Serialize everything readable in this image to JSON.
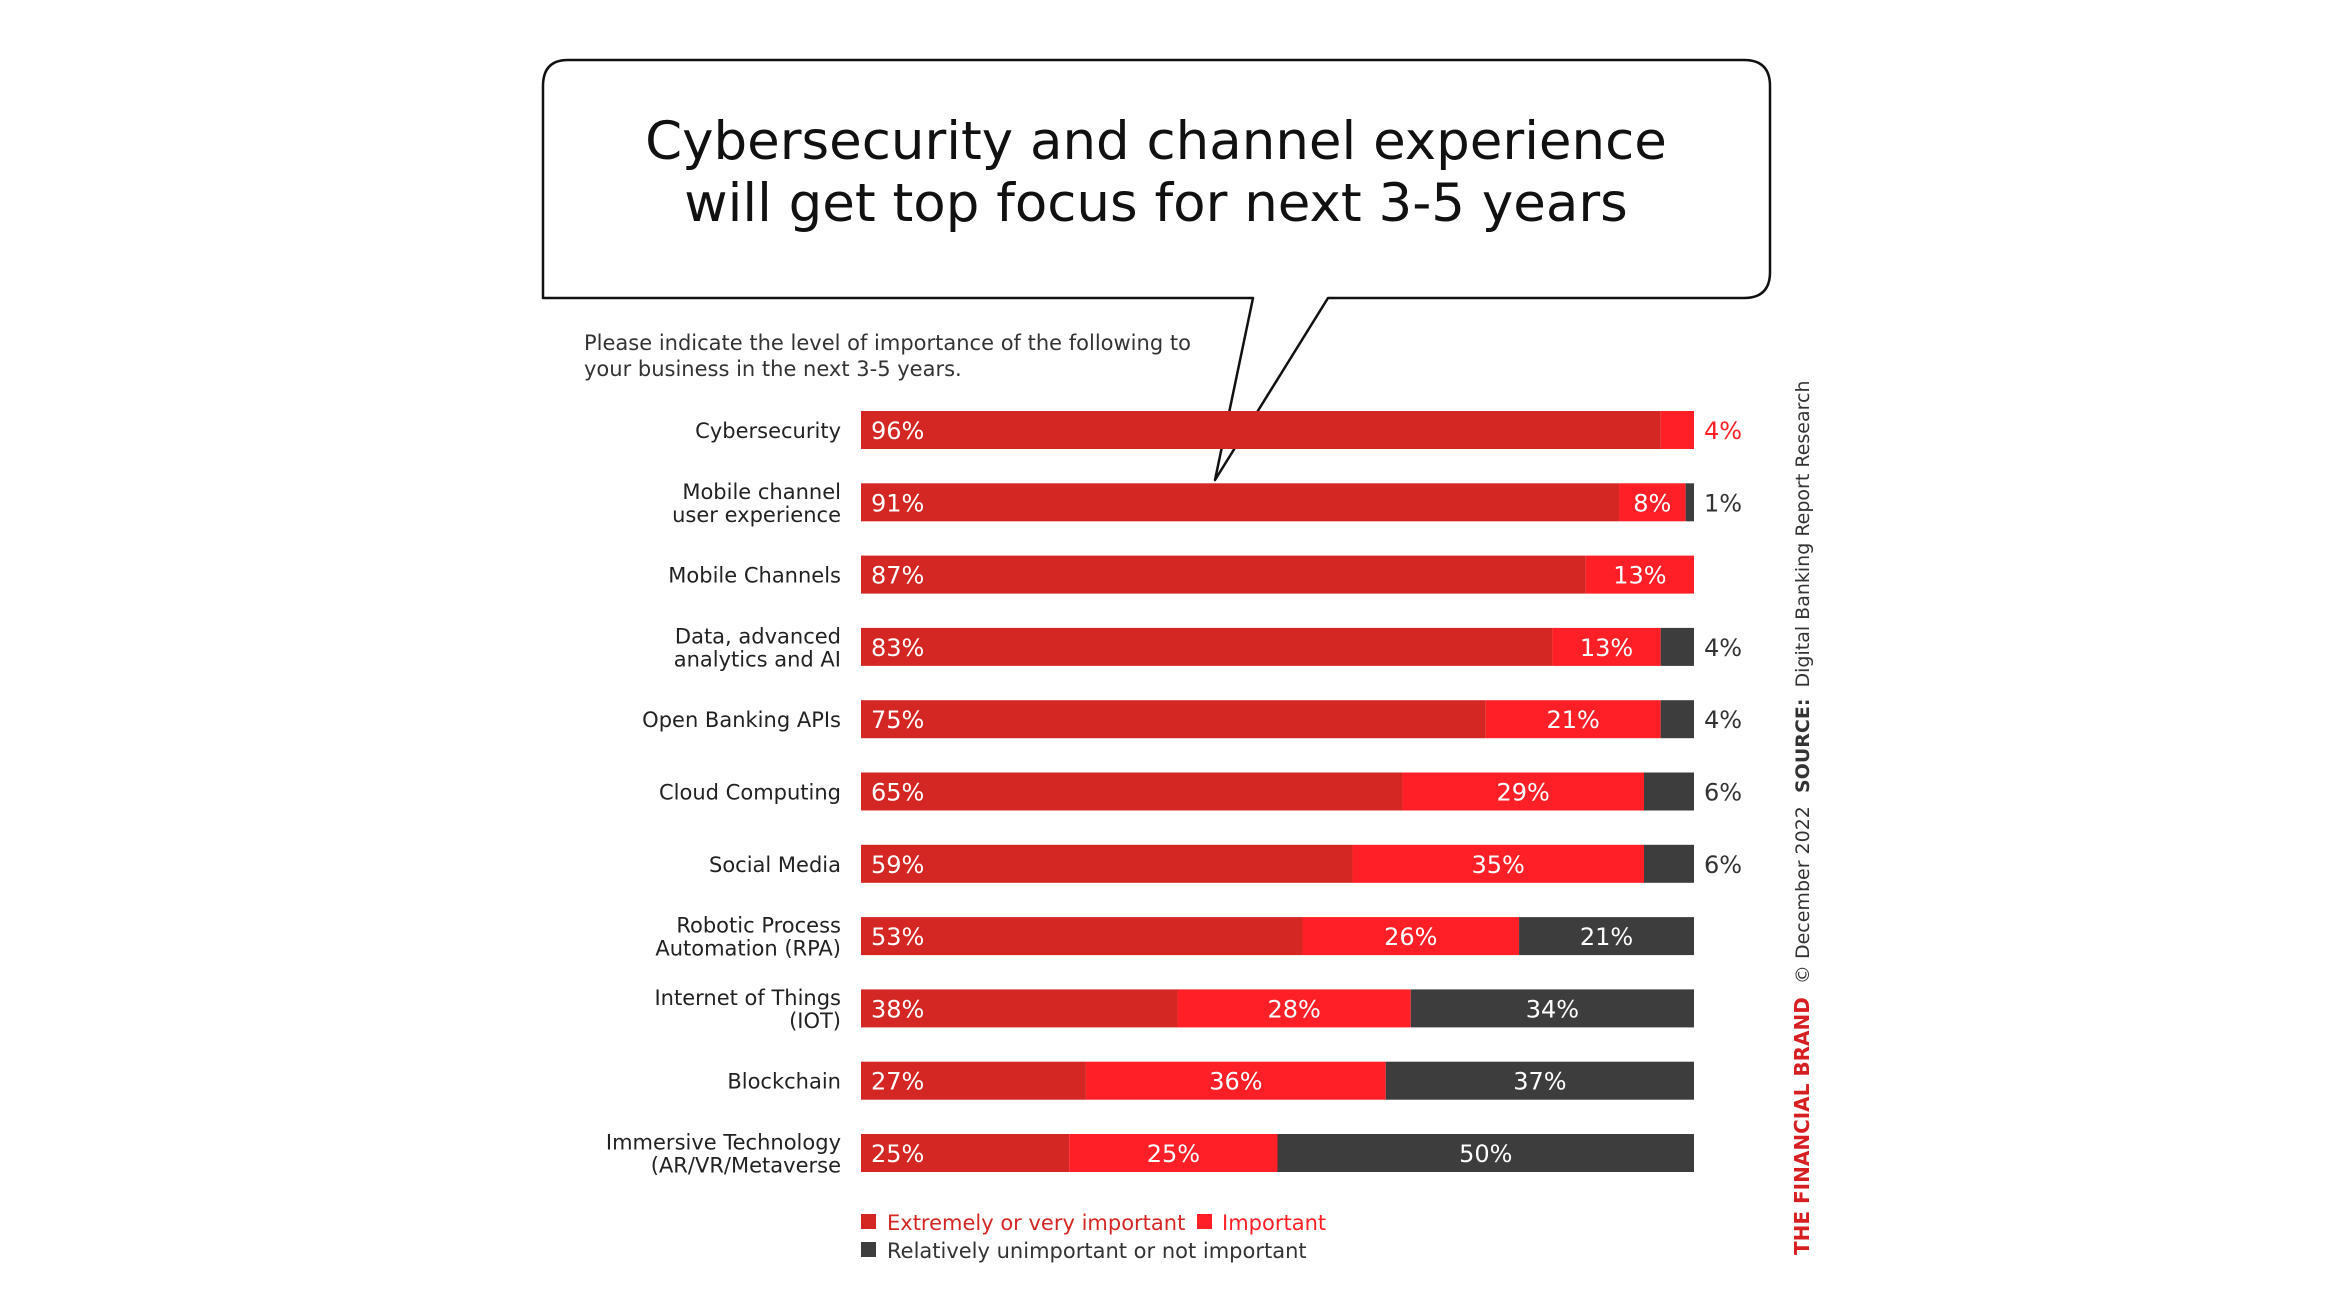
{
  "colors": {
    "extremely": "#d42724",
    "important": "#ff1f26",
    "unimportant": "#3d3d3d",
    "title_text": "#111111",
    "brand": "#d71f22"
  },
  "callout": {
    "title_lines": [
      "Cybersecurity and channel experience",
      "will get top focus for next 3-5 years"
    ]
  },
  "source": {
    "brand": "THE FINANCIAL BRAND",
    "date": "© December 2022",
    "label": "SOURCE:",
    "text": "Digital Banking Report Research"
  },
  "chart_data": {
    "type": "bar",
    "orientation": "horizontal",
    "stacked": true,
    "subtitle_lines": [
      "Please indicate the level of importance of the following to",
      "your business in the next 3-5 years."
    ],
    "categories": [
      [
        "Cybersecurity"
      ],
      [
        "Mobile channel",
        "user experience"
      ],
      [
        "Mobile Channels"
      ],
      [
        "Data, advanced",
        "analytics and AI"
      ],
      [
        "Open Banking APIs"
      ],
      [
        "Cloud Computing"
      ],
      [
        "Social Media"
      ],
      [
        "Robotic Process",
        "Automation (RPA)"
      ],
      [
        "Internet of Things",
        "(IOT)"
      ],
      [
        "Blockchain"
      ],
      [
        "Immersive Technology",
        "(AR/VR/Metaverse"
      ]
    ],
    "series": [
      {
        "name": "Extremely or very important",
        "values": [
          96,
          91,
          87,
          83,
          75,
          65,
          59,
          53,
          38,
          27,
          25
        ]
      },
      {
        "name": "Important",
        "values": [
          4,
          8,
          13,
          13,
          21,
          29,
          35,
          26,
          28,
          36,
          25
        ]
      },
      {
        "name": "Relatively unimportant or not important",
        "values": [
          0,
          1,
          0,
          4,
          4,
          6,
          6,
          21,
          34,
          37,
          50
        ]
      }
    ],
    "legend_position": "bottom-left",
    "xlim": [
      0,
      100
    ],
    "grid": false
  }
}
